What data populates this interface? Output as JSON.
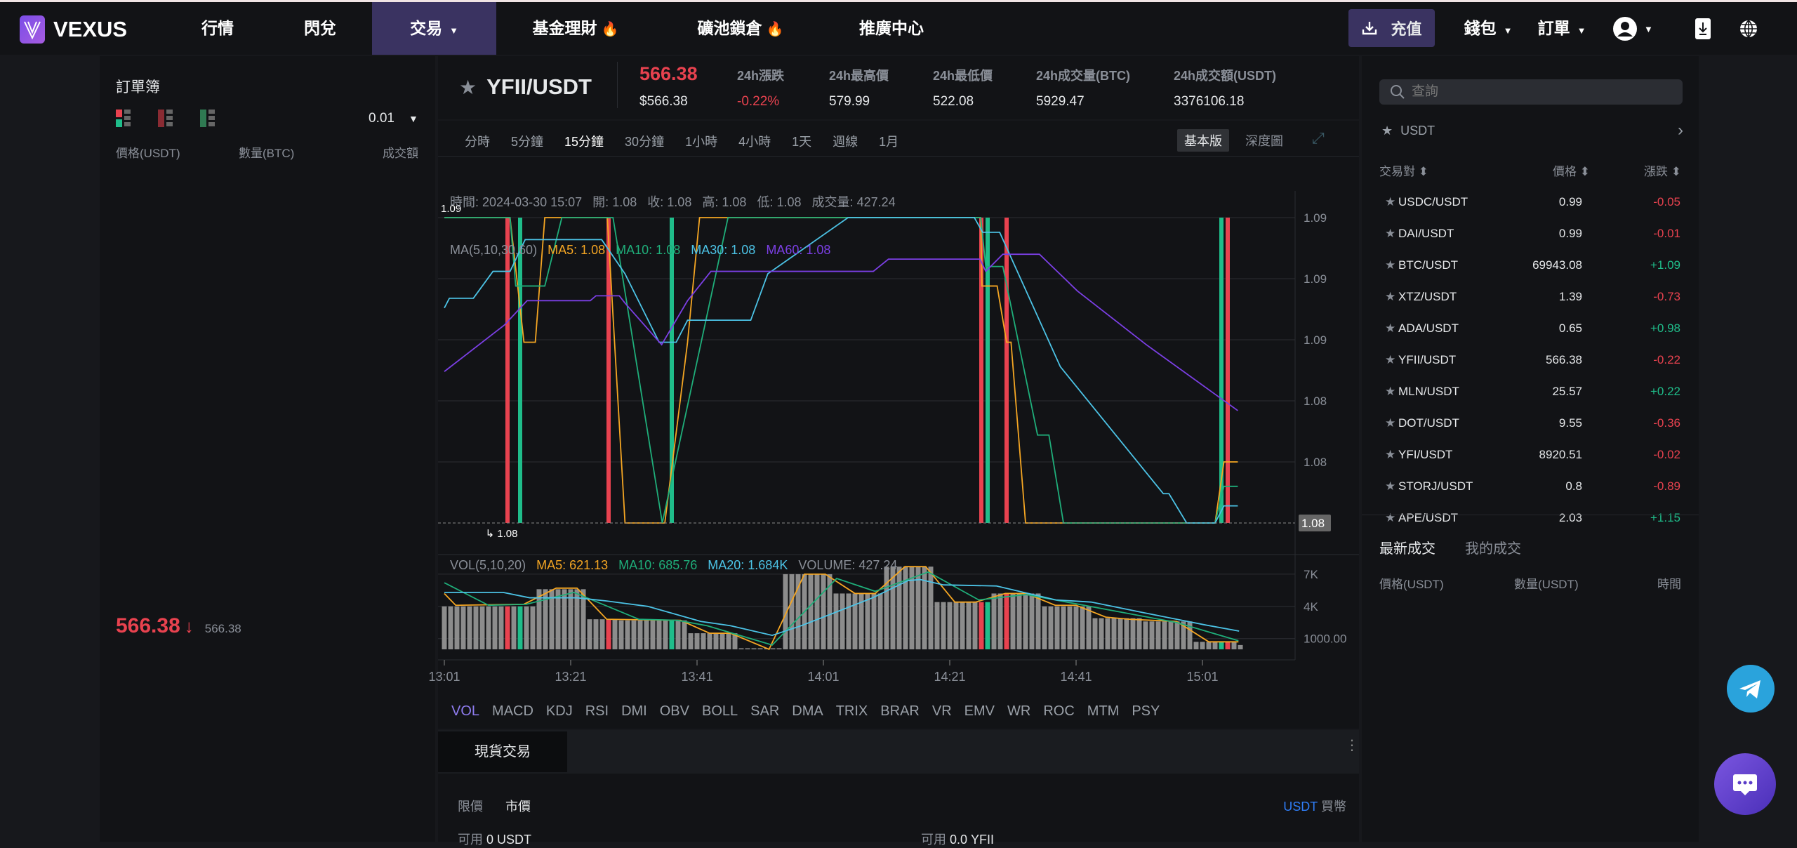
{
  "nav": {
    "brand": "VEXUS",
    "items": [
      {
        "label": "行情"
      },
      {
        "label": "閃兌"
      },
      {
        "label": "交易",
        "active": true
      },
      {
        "label": "基金理財",
        "hot": true
      },
      {
        "label": "礦池鎖倉",
        "hot": true
      },
      {
        "label": "推廣中心"
      }
    ],
    "deposit": "充值",
    "wallet": "錢包",
    "orders": "訂單",
    "icons": [
      "download-icon",
      "user-avatar-icon",
      "app-download-icon",
      "globe-icon"
    ],
    "active_color": "#3a3361"
  },
  "orderbook": {
    "title": "訂單簿",
    "precision": "0.01",
    "headers": [
      "價格(USDT)",
      "數量(BTC)",
      "成交額"
    ],
    "last_price": "566.38",
    "last_price_usd": "566.38",
    "direction": "down"
  },
  "ticker": {
    "pair": "YFII/USDT",
    "price": "566.38",
    "price_usd": "$566.38",
    "stats": [
      {
        "label": "24h漲跌",
        "value": "-0.22%",
        "color": "#e8424f"
      },
      {
        "label": "24h最高價",
        "value": "579.99"
      },
      {
        "label": "24h最低價",
        "value": "522.08"
      },
      {
        "label": "24h成交量(BTC)",
        "value": "5929.47"
      },
      {
        "label": "24h成交額(USDT)",
        "value": "3376106.18"
      }
    ]
  },
  "periods": [
    "分時",
    "5分鐘",
    "15分鐘",
    "30分鐘",
    "1小時",
    "4小時",
    "1天",
    "週線",
    "1月"
  ],
  "active_period": "15分鐘",
  "chart_modes": [
    "基本版",
    "深度圖"
  ],
  "chart_info": {
    "time_label": "時間:",
    "time": "2024-03-30 15:07",
    "open_label": "開:",
    "open": "1.08",
    "close_label": "收:",
    "close": "1.08",
    "high_label": "高:",
    "high": "1.08",
    "low_label": "低:",
    "low": "1.08",
    "vol_label": "成交量:",
    "vol": "427.24",
    "ma_title": "MA(5,10,30,60)",
    "ma5": "MA5: 1.08",
    "ma10": "MA10: 1.08",
    "ma30": "MA30: 1.08",
    "ma60": "MA60: 1.08"
  },
  "vol_info": {
    "title": "VOL(5,10,20)",
    "ma5": "MA5: 621.13",
    "ma10": "MA10: 685.76",
    "ma20": "MA20: 1.684K",
    "volume": "VOLUME: 427.24"
  },
  "chart_data": {
    "type": "line",
    "x_ticks": [
      {
        "min": 0,
        "label": "13:01"
      },
      {
        "min": 20,
        "label": "13:21"
      },
      {
        "min": 40,
        "label": "13:41"
      },
      {
        "min": 60,
        "label": "14:01"
      },
      {
        "min": 80,
        "label": "14:21"
      },
      {
        "min": 100,
        "label": "14:41"
      },
      {
        "min": 120,
        "label": "15:01"
      }
    ],
    "ylim": [
      1.0775,
      1.09
    ],
    "y_ticks": [
      {
        "v": 1.09,
        "label": "1.09"
      },
      {
        "v": 1.0875,
        "label": "1.09"
      },
      {
        "v": 1.085,
        "label": "1.09"
      },
      {
        "v": 1.0825,
        "label": "1.08"
      },
      {
        "v": 1.08,
        "label": "1.08"
      }
    ],
    "current_price": {
      "v": 1.0775,
      "label": "1.08"
    },
    "max_mark": "1.09",
    "min_mark": "1.08",
    "colors": {
      "ma5": "#f5a623",
      "ma10": "#1fae7a",
      "ma30": "#4cc3e6",
      "ma60": "#7b3fe4",
      "up": "#1fbd8a",
      "down": "#e8424f"
    },
    "candles": [
      {
        "min": 10,
        "dir": "down"
      },
      {
        "min": 12,
        "dir": "up"
      },
      {
        "min": 26,
        "dir": "down"
      },
      {
        "min": 36,
        "dir": "up"
      },
      {
        "min": 85,
        "dir": "down"
      },
      {
        "min": 86,
        "dir": "up"
      },
      {
        "min": 89,
        "dir": "down"
      },
      {
        "min": 123,
        "dir": "up"
      },
      {
        "min": 124,
        "dir": "down"
      }
    ],
    "series": [
      {
        "name": "MA5",
        "key": "ma5",
        "points": [
          [
            0,
            1.09
          ],
          [
            10.4,
            1.09
          ],
          [
            12.6,
            1.0849
          ],
          [
            14.4,
            1.0849
          ],
          [
            15.9,
            1.09
          ],
          [
            25.8,
            1.09
          ],
          [
            28.6,
            1.0775
          ],
          [
            34.9,
            1.0775
          ],
          [
            38.5,
            1.0849
          ],
          [
            40.4,
            1.09
          ],
          [
            84.9,
            1.09
          ],
          [
            85.1,
            1.0872
          ],
          [
            87.5,
            1.0872
          ],
          [
            89,
            1.0849
          ],
          [
            89.7,
            1.0849
          ],
          [
            92,
            1.0775
          ],
          [
            122,
            1.0775
          ],
          [
            123.4,
            1.08
          ],
          [
            125.6,
            1.08
          ]
        ]
      },
      {
        "name": "MA10",
        "key": "ma10",
        "points": [
          [
            0,
            1.09
          ],
          [
            10.4,
            1.09
          ],
          [
            11.3,
            1.0872
          ],
          [
            15.9,
            1.0872
          ],
          [
            18.6,
            1.09
          ],
          [
            26.7,
            1.09
          ],
          [
            34.5,
            1.0775
          ],
          [
            44.9,
            1.09
          ],
          [
            84.9,
            1.09
          ],
          [
            85.7,
            1.088
          ],
          [
            88.4,
            1.088
          ],
          [
            93.9,
            1.0811
          ],
          [
            95.7,
            1.0811
          ],
          [
            98,
            1.0775
          ],
          [
            122,
            1.0775
          ],
          [
            123.4,
            1.079
          ],
          [
            125.6,
            1.079
          ]
        ]
      },
      {
        "name": "MA30",
        "key": "ma30",
        "points": [
          [
            0,
            1.0863
          ],
          [
            0.8,
            1.0867
          ],
          [
            4.6,
            1.0867
          ],
          [
            7.7,
            1.0878
          ],
          [
            10.4,
            1.0878
          ],
          [
            12.8,
            1.0891
          ],
          [
            24.9,
            1.0891
          ],
          [
            28.6,
            1.0877
          ],
          [
            34,
            1.0849
          ],
          [
            36.7,
            1.0849
          ],
          [
            38.5,
            1.0858
          ],
          [
            48.5,
            1.0858
          ],
          [
            51.2,
            1.0877
          ],
          [
            63.9,
            1.09
          ],
          [
            83.9,
            1.09
          ],
          [
            85.2,
            1.0894
          ],
          [
            87.9,
            1.0894
          ],
          [
            97.5,
            1.0839
          ],
          [
            113.8,
            1.0787
          ],
          [
            114.7,
            1.0787
          ],
          [
            117.5,
            1.0775
          ],
          [
            122,
            1.0775
          ],
          [
            123.4,
            1.0782
          ],
          [
            125.6,
            1.0782
          ]
        ]
      },
      {
        "name": "MA60",
        "key": "ma60",
        "points": [
          [
            0,
            1.0837
          ],
          [
            9.5,
            1.0856
          ],
          [
            13.1,
            1.0866
          ],
          [
            23.1,
            1.0866
          ],
          [
            24,
            1.0868
          ],
          [
            27.7,
            1.0868
          ],
          [
            28.6,
            1.0865
          ],
          [
            34.4,
            1.0848
          ],
          [
            38.5,
            1.0866
          ],
          [
            42.2,
            1.0878
          ],
          [
            67.9,
            1.0878
          ],
          [
            70.3,
            1.0883
          ],
          [
            84.8,
            1.0883
          ],
          [
            85.7,
            1.0878
          ],
          [
            88.4,
            1.0885
          ],
          [
            94.2,
            1.0885
          ],
          [
            100.2,
            1.087
          ],
          [
            111.1,
            1.0848
          ],
          [
            125.6,
            1.0821
          ]
        ]
      }
    ],
    "volume": {
      "ylim": [
        0,
        8000
      ],
      "y_ticks": [
        {
          "v": 7000,
          "label": "7K"
        },
        {
          "v": 4000,
          "label": "4K"
        },
        {
          "v": 1000,
          "label": "1000.00"
        }
      ],
      "segments": [
        [
          0,
          14,
          4000
        ],
        [
          15,
          22,
          5600
        ],
        [
          23,
          27,
          2800
        ],
        [
          28,
          38,
          2700
        ],
        [
          39,
          46,
          1500
        ],
        [
          47,
          53,
          100
        ],
        [
          54,
          61,
          7000
        ],
        [
          62,
          69,
          5200
        ],
        [
          70,
          77,
          7700
        ],
        [
          78,
          86,
          4400
        ],
        [
          87,
          94,
          5200
        ],
        [
          95,
          102,
          4000
        ],
        [
          103,
          110,
          2900
        ],
        [
          111,
          118,
          2600
        ],
        [
          119,
          125,
          700
        ],
        [
          126,
          126,
          400
        ]
      ],
      "ma": [
        {
          "key": "ma5",
          "points": [
            [
              0,
              5200
            ],
            [
              1.8,
              4100
            ],
            [
              12.6,
              4200
            ],
            [
              17.7,
              5700
            ],
            [
              21,
              5700
            ],
            [
              25.7,
              2800
            ],
            [
              37.4,
              2700
            ],
            [
              42,
              1500
            ],
            [
              45.3,
              1500
            ],
            [
              51.4,
              0
            ],
            [
              57,
              7000
            ],
            [
              60.3,
              7000
            ],
            [
              65,
              5200
            ],
            [
              68.2,
              5200
            ],
            [
              72.9,
              7700
            ],
            [
              76.2,
              7700
            ],
            [
              80.8,
              4400
            ],
            [
              84.1,
              4400
            ],
            [
              88.8,
              5200
            ],
            [
              92.1,
              5200
            ],
            [
              96.7,
              4100
            ],
            [
              100,
              4100
            ],
            [
              104.7,
              3000
            ],
            [
              108.4,
              2800
            ],
            [
              115.9,
              2600
            ],
            [
              121,
              700
            ],
            [
              125.7,
              700
            ]
          ]
        },
        {
          "key": "ma10",
          "points": [
            [
              0,
              6200
            ],
            [
              7,
              4100
            ],
            [
              13,
              4200
            ],
            [
              20.5,
              5300
            ],
            [
              30.8,
              2800
            ],
            [
              36.9,
              2700
            ],
            [
              41.6,
              2200
            ],
            [
              51.9,
              400
            ],
            [
              62.1,
              6600
            ],
            [
              68.2,
              5400
            ],
            [
              76.6,
              7200
            ],
            [
              84.6,
              4600
            ],
            [
              92.1,
              5100
            ],
            [
              96.7,
              4600
            ],
            [
              115.9,
              2500
            ],
            [
              125.7,
              800
            ]
          ]
        },
        {
          "key": "ma30",
          "points": [
            [
              0,
              5300
            ],
            [
              9.3,
              5300
            ],
            [
              13.5,
              4800
            ],
            [
              21,
              4800
            ],
            [
              25.7,
              4500
            ],
            [
              32.2,
              4000
            ],
            [
              40.6,
              2600
            ],
            [
              45.3,
              2200
            ],
            [
              51.9,
              1300
            ],
            [
              56.5,
              2200
            ],
            [
              67.8,
              4800
            ],
            [
              73.4,
              6400
            ],
            [
              75.3,
              6500
            ],
            [
              79,
              6000
            ],
            [
              87.4,
              5900
            ],
            [
              96.8,
              4600
            ],
            [
              102.4,
              4400
            ],
            [
              110.8,
              3400
            ],
            [
              120.2,
              2300
            ],
            [
              125.8,
              1700
            ]
          ]
        }
      ]
    }
  },
  "indicators": [
    "VOL",
    "MACD",
    "KDJ",
    "RSI",
    "DMI",
    "OBV",
    "BOLL",
    "SAR",
    "DMA",
    "TRIX",
    "BRAR",
    "VR",
    "EMV",
    "WR",
    "ROC",
    "MTM",
    "PSY"
  ],
  "active_indicator": "VOL",
  "trade": {
    "tab": "現貨交易",
    "order_types": [
      "限價",
      "市價"
    ],
    "active_order_type": "市價",
    "buy_currency": "USDT",
    "buy_label": "買幣",
    "avail_label": "可用",
    "avail_left": "0 USDT",
    "avail_right": "0.0 YFII"
  },
  "market": {
    "search_placeholder": "查詢",
    "quote": "USDT",
    "headers": [
      "交易對",
      "價格",
      "漲跌"
    ],
    "rows": [
      {
        "pair": "USDC/USDT",
        "price": "0.99",
        "change": "-0.05"
      },
      {
        "pair": "DAI/USDT",
        "price": "0.99",
        "change": "-0.01"
      },
      {
        "pair": "BTC/USDT",
        "price": "69943.08",
        "change": "+1.09"
      },
      {
        "pair": "XTZ/USDT",
        "price": "1.39",
        "change": "-0.73"
      },
      {
        "pair": "ADA/USDT",
        "price": "0.65",
        "change": "+0.98"
      },
      {
        "pair": "YFII/USDT",
        "price": "566.38",
        "change": "-0.22"
      },
      {
        "pair": "MLN/USDT",
        "price": "25.57",
        "change": "+0.22"
      },
      {
        "pair": "DOT/USDT",
        "price": "9.55",
        "change": "-0.36"
      },
      {
        "pair": "YFI/USDT",
        "price": "8920.51",
        "change": "-0.02"
      },
      {
        "pair": "STORJ/USDT",
        "price": "0.8",
        "change": "-0.89"
      },
      {
        "pair": "APE/USDT",
        "price": "2.03",
        "change": "+1.15"
      }
    ]
  },
  "trades": {
    "tabs": [
      "最新成交",
      "我的成交"
    ],
    "headers": [
      "價格(USDT)",
      "數量(USDT)",
      "時間"
    ]
  }
}
